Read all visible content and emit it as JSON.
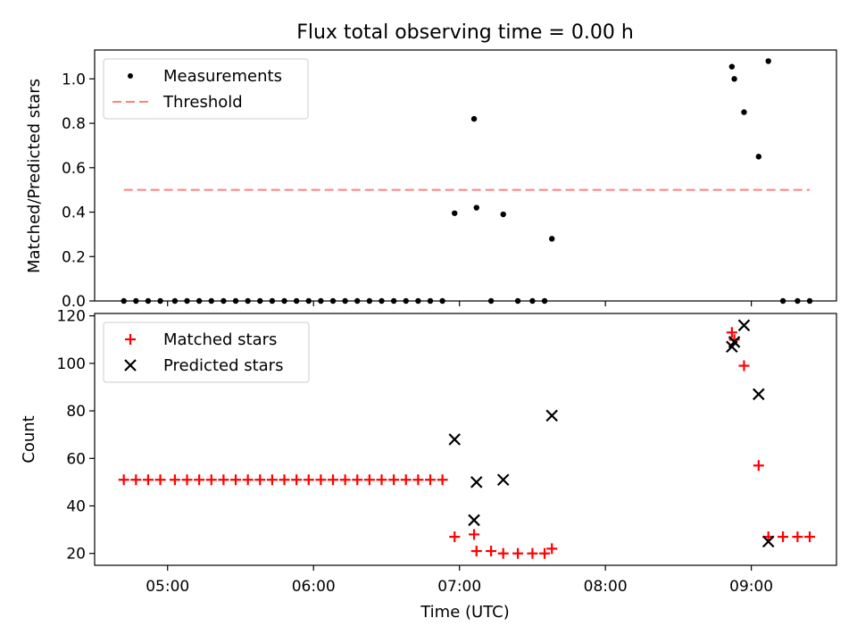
{
  "title": "Flux total observing time = 0.00 h",
  "xlabel": "Time (UTC)",
  "x_ticks": [
    "05:00",
    "06:00",
    "07:00",
    "08:00",
    "09:00"
  ],
  "colors": {
    "measurement": "#000000",
    "threshold": "#ff8080",
    "matched": "#ff0000",
    "predicted": "#000000"
  },
  "chart_data": [
    {
      "type": "scatter",
      "ylabel": "Matched/Predicted stars",
      "x_unit": "time of day (UTC)",
      "ylim": [
        0,
        1.13
      ],
      "y_ticks": [
        "0.0",
        "0.2",
        "0.4",
        "0.6",
        "0.8",
        "1.0"
      ],
      "legend": {
        "placement": "upper left",
        "entries": [
          "Measurements",
          "Threshold"
        ]
      },
      "threshold": {
        "name": "Threshold",
        "value": 0.5,
        "x_start": "04:42",
        "x_end": "09:24"
      },
      "series": [
        {
          "name": "Measurements",
          "x": [
            "04:42",
            "04:47",
            "04:52",
            "04:57",
            "05:03",
            "05:08",
            "05:13",
            "05:18",
            "05:23",
            "05:28",
            "05:33",
            "05:38",
            "05:43",
            "05:48",
            "05:53",
            "05:58",
            "06:03",
            "06:08",
            "06:13",
            "06:18",
            "06:23",
            "06:28",
            "06:33",
            "06:38",
            "06:43",
            "06:48",
            "06:53",
            "06:58",
            "07:06",
            "07:07",
            "07:13",
            "07:18",
            "07:24",
            "07:30",
            "07:35",
            "07:38",
            "08:52",
            "08:53",
            "08:57",
            "09:03",
            "09:07",
            "09:13",
            "09:19",
            "09:24"
          ],
          "y": [
            0,
            0,
            0,
            0,
            0,
            0,
            0,
            0,
            0,
            0,
            0,
            0,
            0,
            0,
            0,
            0,
            0,
            0,
            0,
            0,
            0,
            0,
            0,
            0,
            0,
            0,
            0,
            0.395,
            0.82,
            0.42,
            0,
            0.39,
            0,
            0,
            0,
            0.28,
            1.055,
            1.0,
            0.85,
            0.65,
            1.08,
            0,
            0,
            0
          ]
        }
      ]
    },
    {
      "type": "scatter",
      "ylabel": "Count",
      "x_unit": "time of day (UTC)",
      "ylim": [
        15,
        121
      ],
      "y_ticks": [
        "20",
        "40",
        "60",
        "80",
        "100",
        "120"
      ],
      "legend": {
        "placement": "upper left",
        "entries": [
          "Matched stars",
          "Predicted stars"
        ]
      },
      "series": [
        {
          "name": "Matched stars",
          "marker": "plus",
          "x": [
            "04:42",
            "04:47",
            "04:52",
            "04:57",
            "05:03",
            "05:08",
            "05:13",
            "05:18",
            "05:23",
            "05:28",
            "05:33",
            "05:38",
            "05:43",
            "05:48",
            "05:53",
            "05:58",
            "06:03",
            "06:08",
            "06:13",
            "06:18",
            "06:23",
            "06:28",
            "06:33",
            "06:38",
            "06:43",
            "06:48",
            "06:53",
            "06:58",
            "07:06",
            "07:07",
            "07:13",
            "07:18",
            "07:24",
            "07:30",
            "07:35",
            "07:38",
            "08:52",
            "08:53",
            "08:57",
            "09:03",
            "09:07",
            "09:13",
            "09:19",
            "09:24"
          ],
          "y": [
            51,
            51,
            51,
            51,
            51,
            51,
            51,
            51,
            51,
            51,
            51,
            51,
            51,
            51,
            51,
            51,
            51,
            51,
            51,
            51,
            51,
            51,
            51,
            51,
            51,
            51,
            51,
            27,
            28,
            21,
            21,
            20,
            20,
            20,
            20,
            22,
            113,
            110,
            99,
            57,
            27,
            27,
            27,
            27
          ]
        },
        {
          "name": "Predicted stars",
          "marker": "x",
          "x": [
            "06:58",
            "07:06",
            "07:07",
            "07:18",
            "07:38",
            "08:52",
            "08:53",
            "08:57",
            "09:03",
            "09:07"
          ],
          "y": [
            68,
            34,
            50,
            51,
            78,
            107,
            109,
            116,
            87,
            25
          ]
        }
      ]
    }
  ]
}
